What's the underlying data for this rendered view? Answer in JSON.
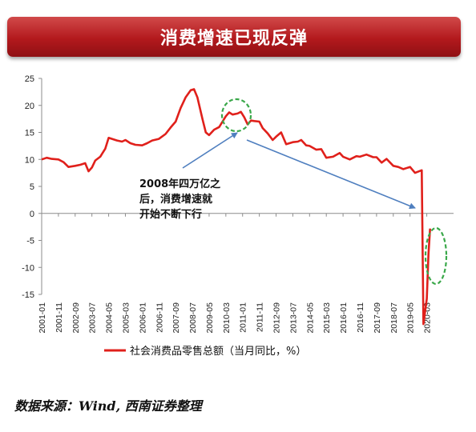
{
  "header": {
    "title": "消费增速已现反弹"
  },
  "source": "数据来源：Wind, 西南证券整理",
  "chart_data": {
    "type": "line",
    "ylim": [
      -15,
      25
    ],
    "yticks": [
      25,
      20,
      15,
      10,
      5,
      0,
      -5,
      -10,
      -15
    ],
    "xticks": [
      "2001-01",
      "2001-11",
      "2002-09",
      "2003-07",
      "2004-05",
      "2005-03",
      "2006-01",
      "2006-11",
      "2007-09",
      "2008-07",
      "2009-05",
      "2010-03",
      "2011-01",
      "2011-11",
      "2012-09",
      "2013-07",
      "2014-05",
      "2015-03",
      "2016-01",
      "2016-11",
      "2017-09",
      "2018-07",
      "2019-05",
      "2020-03"
    ],
    "legend": "top-left below axis",
    "series": [
      {
        "name": "社会消费品零售总额（当月同比，%）",
        "color": "#e0201b",
        "points": [
          [
            "2001-01",
            10.0
          ],
          [
            "2001-04",
            10.3
          ],
          [
            "2001-07",
            10.1
          ],
          [
            "2001-11",
            10.0
          ],
          [
            "2002-02",
            9.5
          ],
          [
            "2002-05",
            8.6
          ],
          [
            "2002-09",
            8.8
          ],
          [
            "2002-12",
            9.0
          ],
          [
            "2003-03",
            9.3
          ],
          [
            "2003-05",
            7.8
          ],
          [
            "2003-07",
            8.5
          ],
          [
            "2003-09",
            9.8
          ],
          [
            "2003-12",
            10.5
          ],
          [
            "2004-03",
            12.0
          ],
          [
            "2004-05",
            14.0
          ],
          [
            "2004-07",
            13.8
          ],
          [
            "2004-10",
            13.5
          ],
          [
            "2005-01",
            13.3
          ],
          [
            "2005-03",
            13.6
          ],
          [
            "2005-06",
            13.0
          ],
          [
            "2005-09",
            12.7
          ],
          [
            "2006-01",
            12.6
          ],
          [
            "2006-04",
            13.0
          ],
          [
            "2006-07",
            13.5
          ],
          [
            "2006-11",
            13.8
          ],
          [
            "2007-03",
            14.7
          ],
          [
            "2007-06",
            15.9
          ],
          [
            "2007-09",
            17.0
          ],
          [
            "2007-12",
            19.5
          ],
          [
            "2008-03",
            21.5
          ],
          [
            "2008-06",
            22.8
          ],
          [
            "2008-08",
            23.0
          ],
          [
            "2008-10",
            21.5
          ],
          [
            "2009-01",
            17.5
          ],
          [
            "2009-03",
            15.0
          ],
          [
            "2009-05",
            14.5
          ],
          [
            "2009-08",
            15.5
          ],
          [
            "2009-11",
            16.0
          ],
          [
            "2010-01",
            17.0
          ],
          [
            "2010-03",
            18.0
          ],
          [
            "2010-05",
            18.7
          ],
          [
            "2010-07",
            18.3
          ],
          [
            "2010-10",
            18.5
          ],
          [
            "2010-12",
            18.8
          ],
          [
            "2011-02",
            17.8
          ],
          [
            "2011-04",
            16.5
          ],
          [
            "2011-06",
            17.2
          ],
          [
            "2011-08",
            17.1
          ],
          [
            "2011-11",
            17.0
          ],
          [
            "2012-01",
            15.8
          ],
          [
            "2012-04",
            14.8
          ],
          [
            "2012-07",
            13.6
          ],
          [
            "2012-09",
            14.2
          ],
          [
            "2012-12",
            15.0
          ],
          [
            "2013-03",
            12.8
          ],
          [
            "2013-07",
            13.2
          ],
          [
            "2013-10",
            13.3
          ],
          [
            "2013-12",
            13.6
          ],
          [
            "2014-03",
            12.6
          ],
          [
            "2014-05",
            12.5
          ],
          [
            "2014-09",
            11.8
          ],
          [
            "2014-12",
            11.9
          ],
          [
            "2015-03",
            10.3
          ],
          [
            "2015-07",
            10.5
          ],
          [
            "2015-11",
            11.2
          ],
          [
            "2016-01",
            10.5
          ],
          [
            "2016-05",
            10.0
          ],
          [
            "2016-09",
            10.6
          ],
          [
            "2016-11",
            10.5
          ],
          [
            "2017-03",
            10.9
          ],
          [
            "2017-07",
            10.4
          ],
          [
            "2017-09",
            10.4
          ],
          [
            "2017-12",
            9.4
          ],
          [
            "2018-03",
            10.1
          ],
          [
            "2018-07",
            8.8
          ],
          [
            "2018-10",
            8.6
          ],
          [
            "2019-01",
            8.2
          ],
          [
            "2019-05",
            8.6
          ],
          [
            "2019-08",
            7.5
          ],
          [
            "2019-12",
            8.0
          ],
          [
            "2020-01",
            -20.5
          ],
          [
            "2020-03",
            -15.8
          ],
          [
            "2020-04",
            -7.5
          ],
          [
            "2020-05",
            -2.8
          ]
        ]
      }
    ],
    "annotations": [
      {
        "text_lines": [
          "2008年四万亿之",
          "后，消费增速就",
          "开始不断下行"
        ]
      }
    ]
  }
}
